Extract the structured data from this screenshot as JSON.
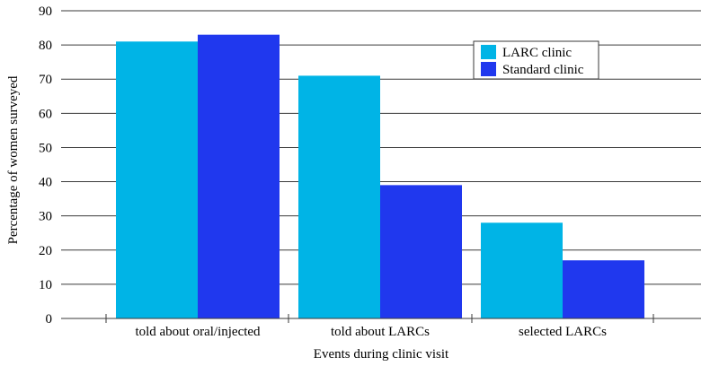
{
  "chart_data": {
    "type": "bar",
    "categories": [
      "told about oral/injected",
      "told about LARCs",
      "selected LARCs"
    ],
    "series": [
      {
        "name": "LARC clinic",
        "values": [
          81,
          71,
          28
        ],
        "color": "#00b4e6"
      },
      {
        "name": "Standard clinic",
        "values": [
          83,
          39,
          17
        ],
        "color": "#2038ee"
      }
    ],
    "xlabel": "Events during clinic visit",
    "ylabel": "Percentage of women surveyed",
    "ylim": [
      0,
      90
    ],
    "yticks": [
      0,
      10,
      20,
      30,
      40,
      50,
      60,
      70,
      80,
      90
    ],
    "grid": true,
    "legend_position": "top-right"
  }
}
